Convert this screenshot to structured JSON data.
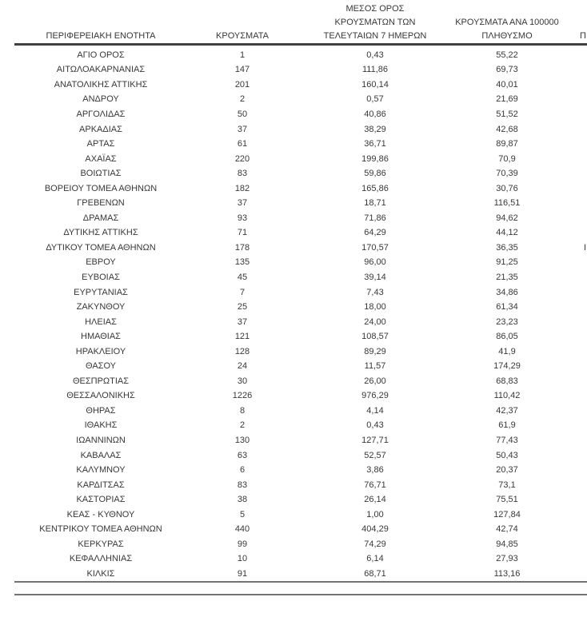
{
  "table": {
    "headers": {
      "region": "ΠΕΡΙΦΕΡΕΙΑΚΗ ΕΝΟΤΗΤΑ",
      "cases": "ΚΡΟΥΣΜΑΤΑ",
      "avg7_lines": [
        "ΜΕΣΟΣ ΟΡΟΣ",
        "ΚΡΟΥΣΜΑΤΩΝ ΤΩΝ",
        "ΤΕΛΕΥΤΑΙΩΝ 7 ΗΜΕΡΩΝ"
      ],
      "per100k_lines": [
        "ΚΡΟΥΣΜΑΤΑ ΑΝΑ 100000",
        "ΠΛΗΘΥΣΜΟ"
      ]
    },
    "cutoff_fragments": {
      "header": "Π",
      "row": "Ι",
      "row_index": 13
    },
    "rows": [
      {
        "region": "ΑΓΙΟ ΟΡΟΣ",
        "cases": "1",
        "avg7": "0,43",
        "per100k": "55,22"
      },
      {
        "region": "ΑΙΤΩΛΟΑΚΑΡΝΑΝΙΑΣ",
        "cases": "147",
        "avg7": "111,86",
        "per100k": "69,73"
      },
      {
        "region": "ΑΝΑΤΟΛΙΚΗΣ ΑΤΤΙΚΗΣ",
        "cases": "201",
        "avg7": "160,14",
        "per100k": "40,01"
      },
      {
        "region": "ΑΝΔΡΟΥ",
        "cases": "2",
        "avg7": "0,57",
        "per100k": "21,69"
      },
      {
        "region": "ΑΡΓΟΛΙΔΑΣ",
        "cases": "50",
        "avg7": "40,86",
        "per100k": "51,52"
      },
      {
        "region": "ΑΡΚΑΔΙΑΣ",
        "cases": "37",
        "avg7": "38,29",
        "per100k": "42,68"
      },
      {
        "region": "ΑΡΤΑΣ",
        "cases": "61",
        "avg7": "36,71",
        "per100k": "89,87"
      },
      {
        "region": "ΑΧΑΪΑΣ",
        "cases": "220",
        "avg7": "199,86",
        "per100k": "70,9"
      },
      {
        "region": "ΒΟΙΩΤΙΑΣ",
        "cases": "83",
        "avg7": "59,86",
        "per100k": "70,39"
      },
      {
        "region": "ΒΟΡΕΙΟΥ ΤΟΜΕΑ ΑΘΗΝΩΝ",
        "cases": "182",
        "avg7": "165,86",
        "per100k": "30,76"
      },
      {
        "region": "ΓΡΕΒΕΝΩΝ",
        "cases": "37",
        "avg7": "18,71",
        "per100k": "116,51"
      },
      {
        "region": "ΔΡΑΜΑΣ",
        "cases": "93",
        "avg7": "71,86",
        "per100k": "94,62"
      },
      {
        "region": "ΔΥΤΙΚΗΣ ΑΤΤΙΚΗΣ",
        "cases": "71",
        "avg7": "64,29",
        "per100k": "44,12"
      },
      {
        "region": "ΔΥΤΙΚΟΥ ΤΟΜΕΑ ΑΘΗΝΩΝ",
        "cases": "178",
        "avg7": "170,57",
        "per100k": "36,35"
      },
      {
        "region": "ΕΒΡΟΥ",
        "cases": "135",
        "avg7": "96,00",
        "per100k": "91,25"
      },
      {
        "region": "ΕΥΒΟΙΑΣ",
        "cases": "45",
        "avg7": "39,14",
        "per100k": "21,35"
      },
      {
        "region": "ΕΥΡΥΤΑΝΙΑΣ",
        "cases": "7",
        "avg7": "7,43",
        "per100k": "34,86"
      },
      {
        "region": "ΖΑΚΥΝΘΟΥ",
        "cases": "25",
        "avg7": "18,00",
        "per100k": "61,34"
      },
      {
        "region": "ΗΛΕΙΑΣ",
        "cases": "37",
        "avg7": "24,00",
        "per100k": "23,23"
      },
      {
        "region": "ΗΜΑΘΙΑΣ",
        "cases": "121",
        "avg7": "108,57",
        "per100k": "86,05"
      },
      {
        "region": "ΗΡΑΚΛΕΙΟΥ",
        "cases": "128",
        "avg7": "89,29",
        "per100k": "41,9"
      },
      {
        "region": "ΘΑΣΟΥ",
        "cases": "24",
        "avg7": "11,57",
        "per100k": "174,29"
      },
      {
        "region": "ΘΕΣΠΡΩΤΙΑΣ",
        "cases": "30",
        "avg7": "26,00",
        "per100k": "68,83"
      },
      {
        "region": "ΘΕΣΣΑΛΟΝΙΚΗΣ",
        "cases": "1226",
        "avg7": "976,29",
        "per100k": "110,42"
      },
      {
        "region": "ΘΗΡΑΣ",
        "cases": "8",
        "avg7": "4,14",
        "per100k": "42,37"
      },
      {
        "region": "ΙΘΑΚΗΣ",
        "cases": "2",
        "avg7": "0,43",
        "per100k": "61,9"
      },
      {
        "region": "ΙΩΑΝΝΙΝΩΝ",
        "cases": "130",
        "avg7": "127,71",
        "per100k": "77,43"
      },
      {
        "region": "ΚΑΒΑΛΑΣ",
        "cases": "63",
        "avg7": "52,57",
        "per100k": "50,43"
      },
      {
        "region": "ΚΑΛΥΜΝΟΥ",
        "cases": "6",
        "avg7": "3,86",
        "per100k": "20,37"
      },
      {
        "region": "ΚΑΡΔΙΤΣΑΣ",
        "cases": "83",
        "avg7": "76,71",
        "per100k": "73,1"
      },
      {
        "region": "ΚΑΣΤΟΡΙΑΣ",
        "cases": "38",
        "avg7": "26,14",
        "per100k": "75,51"
      },
      {
        "region": "ΚΕΑΣ - ΚΥΘΝΟΥ",
        "cases": "5",
        "avg7": "1,00",
        "per100k": "127,84"
      },
      {
        "region": "ΚΕΝΤΡΙΚΟΥ ΤΟΜΕΑ ΑΘΗΝΩΝ",
        "cases": "440",
        "avg7": "404,29",
        "per100k": "42,74"
      },
      {
        "region": "ΚΕΡΚΥΡΑΣ",
        "cases": "99",
        "avg7": "74,29",
        "per100k": "94,85"
      },
      {
        "region": "ΚΕΦΑΛΛΗΝΙΑΣ",
        "cases": "10",
        "avg7": "6,14",
        "per100k": "27,93"
      },
      {
        "region": "ΚΙΛΚΙΣ",
        "cases": "91",
        "avg7": "68,71",
        "per100k": "113,16"
      }
    ]
  },
  "colors": {
    "text": "#383838",
    "header_rule": "#404040",
    "bottom_rule": "#737373"
  }
}
